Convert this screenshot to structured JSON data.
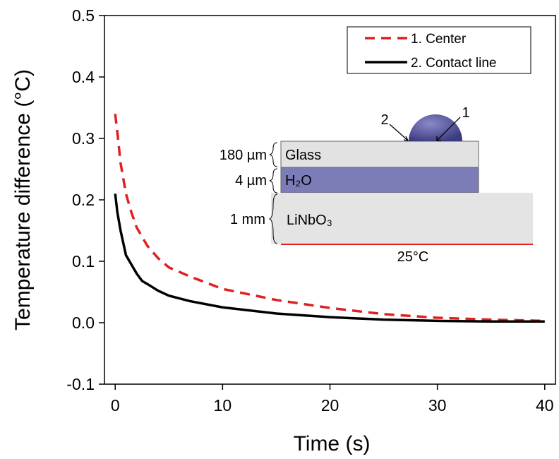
{
  "chart_data": {
    "type": "line",
    "x_label": "Time (s)",
    "y_label": "Temperature difference (°C)",
    "x": [
      0,
      0.2,
      0.5,
      1,
      1.5,
      2,
      2.5,
      3,
      4,
      5,
      7,
      10,
      15,
      20,
      25,
      30,
      35,
      40
    ],
    "series": [
      {
        "name": "1. Center",
        "color": "#e02020",
        "dash": true,
        "values": [
          0.34,
          0.31,
          0.26,
          0.21,
          0.18,
          0.155,
          0.14,
          0.125,
          0.105,
          0.09,
          0.075,
          0.055,
          0.037,
          0.024,
          0.014,
          0.008,
          0.005,
          0.003
        ]
      },
      {
        "name": "2. Contact line",
        "color": "#000000",
        "dash": false,
        "values": [
          0.21,
          0.18,
          0.15,
          0.11,
          0.095,
          0.08,
          0.068,
          0.063,
          0.052,
          0.044,
          0.035,
          0.025,
          0.015,
          0.009,
          0.005,
          0.003,
          0.002,
          0.002
        ]
      }
    ],
    "xlim": [
      -1,
      41
    ],
    "ylim": [
      -0.1,
      0.5
    ],
    "xticks": [
      0,
      10,
      20,
      30,
      40
    ],
    "yticks": [
      -0.1,
      {
        "value": 0,
        "label": "0.0"
      },
      0.1,
      0.2,
      0.3,
      0.4,
      0.5
    ],
    "legend": "top-right",
    "inset": {
      "glass_thickness": "180 µm",
      "glass": "Glass",
      "water_thickness": "4 µm",
      "water": "H₂O",
      "substrate_thickness": "1 mm",
      "substrate": "LiNbO₃",
      "temperature": "25°C",
      "point_1": "1",
      "point_2": "2"
    }
  }
}
